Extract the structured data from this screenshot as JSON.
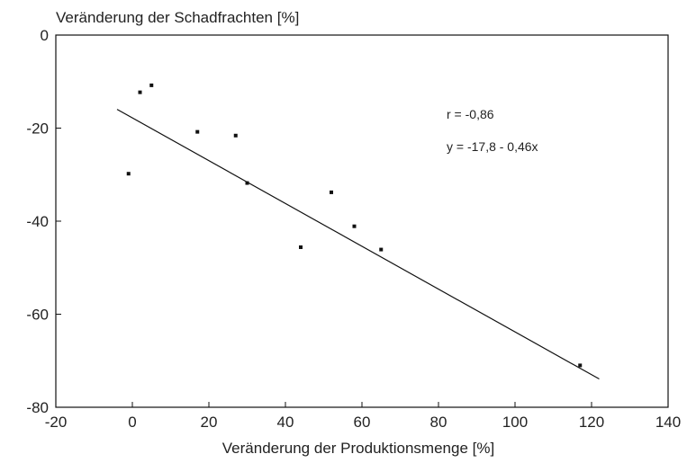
{
  "chart_data": {
    "type": "scatter",
    "title": "",
    "xlabel": "Veränderung der Produktionsmenge [%]",
    "ylabel": "Veränderung der Schadfrachten [%]",
    "xlim": [
      -20,
      140
    ],
    "ylim": [
      -80,
      0
    ],
    "xticks": [
      -20,
      0,
      20,
      40,
      60,
      80,
      100,
      120,
      140
    ],
    "yticks": [
      0,
      -20,
      -40,
      -60,
      -80
    ],
    "grid": false,
    "series": [
      {
        "points": [
          {
            "x": -1,
            "y": -29.8
          },
          {
            "x": 2,
            "y": -12.3
          },
          {
            "x": 5,
            "y": -10.8
          },
          {
            "x": 17,
            "y": -20.8
          },
          {
            "x": 27,
            "y": -21.6
          },
          {
            "x": 30,
            "y": -31.8
          },
          {
            "x": 44,
            "y": -45.6
          },
          {
            "x": 52,
            "y": -33.8
          },
          {
            "x": 58,
            "y": -41.1
          },
          {
            "x": 65,
            "y": -46.1
          },
          {
            "x": 117,
            "y": -71
          }
        ]
      }
    ],
    "regression": {
      "intercept": -17.8,
      "slope": -0.46,
      "x_range": [
        -4,
        122
      ]
    },
    "annotations": {
      "r_label": "r = -0,86",
      "equation_label": "y = -17,8 - 0,46x"
    }
  }
}
